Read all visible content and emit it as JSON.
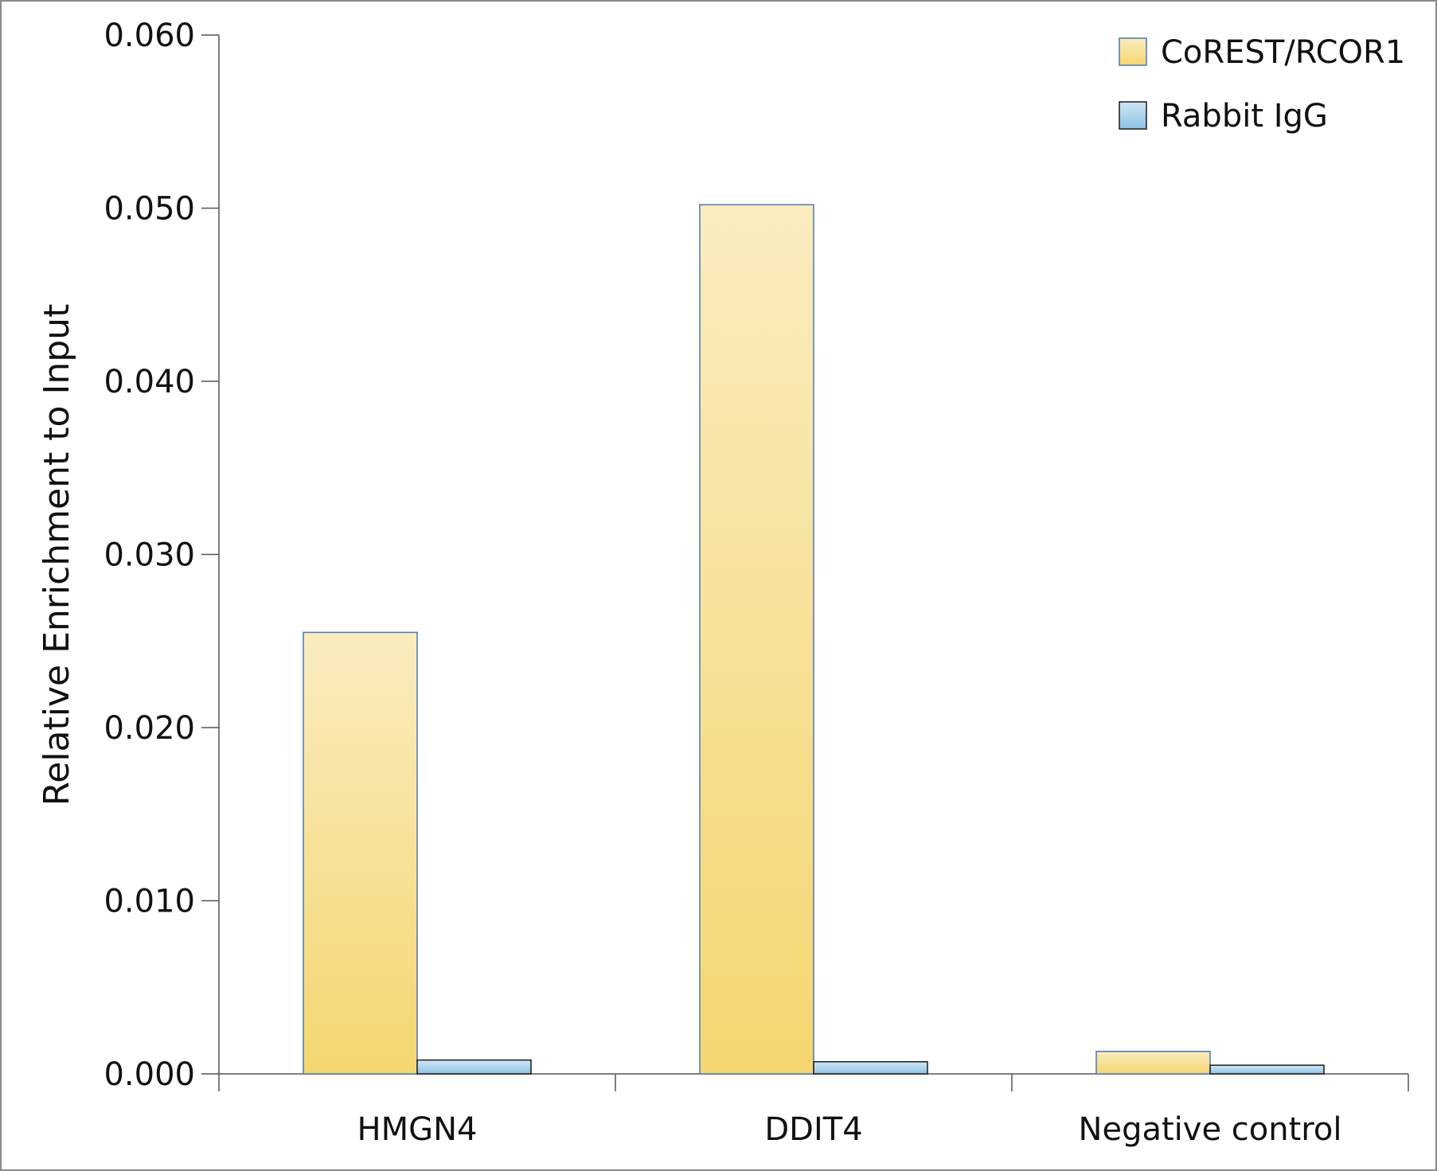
{
  "chart_data": {
    "type": "bar",
    "title": "",
    "xlabel": "",
    "ylabel": "Relative Enrichment to Input",
    "categories": [
      "HMGN4",
      "DDIT4",
      "Negative control"
    ],
    "series": [
      {
        "name": "CoREST/RCOR1",
        "values": [
          0.0255,
          0.0502,
          0.0013
        ]
      },
      {
        "name": "Rabbit IgG",
        "values": [
          0.0008,
          0.0007,
          0.0005
        ]
      }
    ],
    "ylim": [
      0,
      0.06
    ],
    "yticks": [
      "0.000",
      "0.010",
      "0.020",
      "0.030",
      "0.040",
      "0.050",
      "0.060"
    ],
    "grid": false,
    "legend_position": "top-right",
    "colors": {
      "series0_top": "#faecc0",
      "series0_bottom": "#f5d670",
      "series0_border": "#4a78b0",
      "series1_top": "#cfe6f5",
      "series1_bottom": "#8ec2e4",
      "series1_border": "#1a1a1a",
      "axis": "#555555"
    }
  }
}
